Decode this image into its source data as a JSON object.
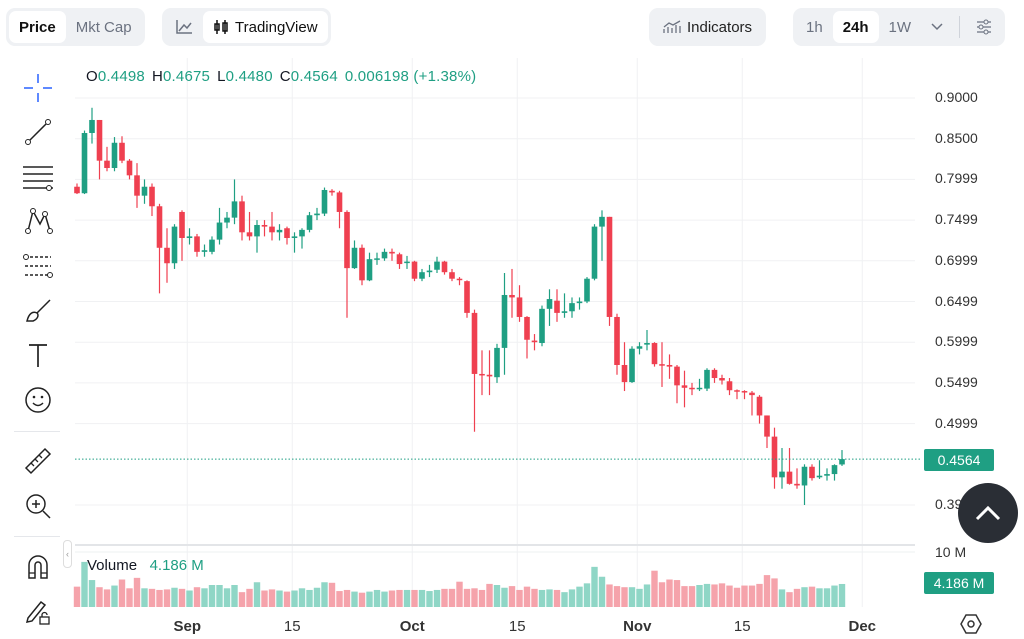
{
  "toolbar": {
    "price": "Price",
    "mkt_cap": "Mkt Cap",
    "tradingview": "TradingView",
    "indicators": "Indicators",
    "intervals": [
      "1h",
      "24h",
      "1W"
    ],
    "active_interval": "24h"
  },
  "ohlc": {
    "o_label": "O",
    "o": "0.4498",
    "h_label": "H",
    "h": "0.4675",
    "l_label": "L",
    "l": "0.4480",
    "c_label": "C",
    "c": "0.4564",
    "change": "0.006198 (+1.38%)"
  },
  "volume": {
    "label": "Volume",
    "value": "4.186 M",
    "axis_max": "10 M",
    "badge": "4.186 M"
  },
  "current_price": "0.4564",
  "colors": {
    "up": "#1f9f83",
    "down": "#ef4050",
    "up_vol": "#8fd6c6",
    "down_vol": "#f5a3ab"
  },
  "chart_data": {
    "type": "candlestick",
    "price_ticks": [
      "0.9000",
      "0.8500",
      "0.7999",
      "0.7499",
      "0.6999",
      "0.6499",
      "0.5999",
      "0.5499",
      "0.4999",
      "0.3999"
    ],
    "price_tick_values": [
      0.9,
      0.85,
      0.8,
      0.75,
      0.7,
      0.65,
      0.6,
      0.55,
      0.5,
      0.4
    ],
    "x_ticks": [
      {
        "label": "Sep",
        "i": 14.7,
        "bold": true
      },
      {
        "label": "15",
        "i": 28.7
      },
      {
        "label": "Oct",
        "i": 44.7,
        "bold": true
      },
      {
        "label": "15",
        "i": 58.7
      },
      {
        "label": "Nov",
        "i": 74.7,
        "bold": true
      },
      {
        "label": "15",
        "i": 88.7
      },
      {
        "label": "Dec",
        "i": 104.7,
        "bold": true
      }
    ],
    "ylim": [
      0.4,
      0.9
    ],
    "candles": [
      [
        0.791,
        0.795,
        0.782,
        0.783
      ],
      [
        0.783,
        0.86,
        0.782,
        0.857
      ],
      [
        0.857,
        0.888,
        0.844,
        0.873
      ],
      [
        0.873,
        0.873,
        0.8,
        0.823
      ],
      [
        0.823,
        0.84,
        0.81,
        0.814
      ],
      [
        0.814,
        0.852,
        0.81,
        0.845
      ],
      [
        0.845,
        0.853,
        0.82,
        0.823
      ],
      [
        0.823,
        0.825,
        0.8,
        0.805
      ],
      [
        0.805,
        0.82,
        0.765,
        0.78
      ],
      [
        0.78,
        0.8,
        0.77,
        0.791
      ],
      [
        0.791,
        0.795,
        0.755,
        0.767
      ],
      [
        0.767,
        0.77,
        0.66,
        0.716
      ],
      [
        0.716,
        0.74,
        0.673,
        0.697
      ],
      [
        0.697,
        0.745,
        0.69,
        0.742
      ],
      [
        0.76,
        0.762,
        0.7,
        0.728
      ],
      [
        0.728,
        0.74,
        0.72,
        0.73
      ],
      [
        0.73,
        0.733,
        0.705,
        0.711
      ],
      [
        0.711,
        0.72,
        0.705,
        0.713
      ],
      [
        0.711,
        0.73,
        0.708,
        0.726
      ],
      [
        0.726,
        0.765,
        0.72,
        0.747
      ],
      [
        0.747,
        0.76,
        0.74,
        0.753
      ],
      [
        0.753,
        0.8,
        0.745,
        0.773
      ],
      [
        0.773,
        0.78,
        0.725,
        0.735
      ],
      [
        0.735,
        0.76,
        0.725,
        0.73
      ],
      [
        0.73,
        0.75,
        0.71,
        0.744
      ],
      [
        0.744,
        0.75,
        0.73,
        0.742
      ],
      [
        0.742,
        0.76,
        0.725,
        0.735
      ],
      [
        0.735,
        0.745,
        0.725,
        0.738
      ],
      [
        0.74,
        0.742,
        0.72,
        0.728
      ],
      [
        0.728,
        0.735,
        0.71,
        0.73
      ],
      [
        0.73,
        0.74,
        0.715,
        0.738
      ],
      [
        0.738,
        0.76,
        0.735,
        0.756
      ],
      [
        0.756,
        0.765,
        0.75,
        0.758
      ],
      [
        0.758,
        0.79,
        0.755,
        0.787
      ],
      [
        0.786,
        0.788,
        0.78,
        0.784
      ],
      [
        0.784,
        0.786,
        0.74,
        0.76
      ],
      [
        0.76,
        0.762,
        0.63,
        0.691
      ],
      [
        0.691,
        0.725,
        0.69,
        0.716
      ],
      [
        0.716,
        0.72,
        0.67,
        0.676
      ],
      [
        0.676,
        0.71,
        0.675,
        0.702
      ],
      [
        0.702,
        0.71,
        0.695,
        0.703
      ],
      [
        0.703,
        0.715,
        0.7,
        0.711
      ],
      [
        0.711,
        0.715,
        0.7,
        0.709
      ],
      [
        0.708,
        0.71,
        0.69,
        0.696
      ],
      [
        0.699,
        0.706,
        0.69,
        0.699
      ],
      [
        0.699,
        0.7,
        0.675,
        0.678
      ],
      [
        0.678,
        0.69,
        0.675,
        0.686
      ],
      [
        0.686,
        0.695,
        0.68,
        0.688
      ],
      [
        0.689,
        0.705,
        0.685,
        0.699
      ],
      [
        0.699,
        0.7,
        0.683,
        0.686
      ],
      [
        0.686,
        0.69,
        0.675,
        0.678
      ],
      [
        0.678,
        0.68,
        0.67,
        0.677
      ],
      [
        0.675,
        0.676,
        0.63,
        0.636
      ],
      [
        0.636,
        0.64,
        0.49,
        0.561
      ],
      [
        0.561,
        0.59,
        0.535,
        0.56
      ],
      [
        0.56,
        0.59,
        0.535,
        0.558
      ],
      [
        0.557,
        0.598,
        0.55,
        0.593
      ],
      [
        0.593,
        0.685,
        0.56,
        0.658
      ],
      [
        0.658,
        0.69,
        0.63,
        0.655
      ],
      [
        0.655,
        0.67,
        0.625,
        0.631
      ],
      [
        0.631,
        0.632,
        0.58,
        0.603
      ],
      [
        0.602,
        0.61,
        0.59,
        0.6
      ],
      [
        0.599,
        0.645,
        0.595,
        0.641
      ],
      [
        0.641,
        0.665,
        0.62,
        0.653
      ],
      [
        0.651,
        0.665,
        0.625,
        0.636
      ],
      [
        0.636,
        0.66,
        0.63,
        0.638
      ],
      [
        0.638,
        0.655,
        0.63,
        0.648
      ],
      [
        0.648,
        0.655,
        0.64,
        0.65
      ],
      [
        0.65,
        0.68,
        0.648,
        0.678
      ],
      [
        0.678,
        0.745,
        0.676,
        0.742
      ],
      [
        0.742,
        0.762,
        0.7,
        0.754
      ],
      [
        0.754,
        0.754,
        0.62,
        0.631
      ],
      [
        0.631,
        0.635,
        0.56,
        0.572
      ],
      [
        0.572,
        0.6,
        0.54,
        0.551
      ],
      [
        0.551,
        0.595,
        0.55,
        0.592
      ],
      [
        0.592,
        0.6,
        0.585,
        0.595
      ],
      [
        0.597,
        0.615,
        0.59,
        0.599
      ],
      [
        0.599,
        0.6,
        0.57,
        0.573
      ],
      [
        0.573,
        0.6,
        0.545,
        0.572
      ],
      [
        0.572,
        0.585,
        0.555,
        0.57
      ],
      [
        0.57,
        0.572,
        0.525,
        0.547
      ],
      [
        0.547,
        0.565,
        0.52,
        0.544
      ],
      [
        0.544,
        0.55,
        0.535,
        0.543
      ],
      [
        0.543,
        0.555,
        0.54,
        0.544
      ],
      [
        0.543,
        0.568,
        0.54,
        0.566
      ],
      [
        0.566,
        0.568,
        0.55,
        0.556
      ],
      [
        0.556,
        0.56,
        0.548,
        0.553
      ],
      [
        0.552,
        0.556,
        0.535,
        0.541
      ],
      [
        0.541,
        0.542,
        0.53,
        0.54
      ],
      [
        0.54,
        0.541,
        0.53,
        0.539
      ],
      [
        0.538,
        0.54,
        0.51,
        0.535
      ],
      [
        0.533,
        0.535,
        0.5,
        0.51
      ],
      [
        0.51,
        0.51,
        0.47,
        0.484
      ],
      [
        0.484,
        0.495,
        0.42,
        0.434
      ],
      [
        0.434,
        0.47,
        0.42,
        0.441
      ],
      [
        0.441,
        0.47,
        0.425,
        0.426
      ],
      [
        0.426,
        0.445,
        0.42,
        0.424
      ],
      [
        0.424,
        0.45,
        0.4,
        0.447
      ],
      [
        0.447,
        0.45,
        0.43,
        0.433
      ],
      [
        0.434,
        0.455,
        0.432,
        0.436
      ],
      [
        0.436,
        0.445,
        0.43,
        0.438
      ],
      [
        0.438,
        0.45,
        0.43,
        0.449
      ],
      [
        0.4498,
        0.4675,
        0.448,
        0.4564
      ]
    ],
    "volumes_m": [
      3.7,
      8.2,
      4.9,
      3.6,
      3.2,
      3.9,
      5.0,
      3.4,
      5.3,
      3.4,
      3.3,
      3.1,
      3.2,
      3.5,
      3.3,
      3.0,
      3.6,
      3.4,
      4.0,
      4.0,
      3.4,
      4.0,
      2.7,
      3.3,
      4.5,
      3.0,
      3.2,
      3.0,
      2.8,
      3.0,
      3.4,
      3.1,
      3.5,
      4.5,
      4.4,
      2.9,
      3.1,
      2.8,
      2.6,
      2.8,
      3.1,
      2.8,
      3.0,
      3.1,
      3.1,
      3.1,
      3.1,
      2.9,
      3.1,
      3.3,
      3.3,
      4.6,
      3.3,
      3.4,
      3.1,
      4.2,
      4.0,
      3.5,
      3.8,
      3.1,
      3.7,
      3.3,
      3.1,
      3.2,
      3.1,
      2.7,
      3.2,
      3.7,
      4.3,
      7.3,
      5.5,
      4.1,
      3.8,
      3.6,
      3.6,
      3.3,
      4.1,
      6.6,
      4.5,
      5.0,
      4.9,
      3.8,
      3.8,
      4.0,
      4.2,
      4.1,
      4.3,
      3.9,
      3.5,
      3.9,
      3.9,
      4.2,
      5.8,
      5.2,
      3.2,
      2.7,
      3.3,
      3.6,
      3.7,
      3.4,
      3.4,
      3.9,
      4.186
    ]
  }
}
